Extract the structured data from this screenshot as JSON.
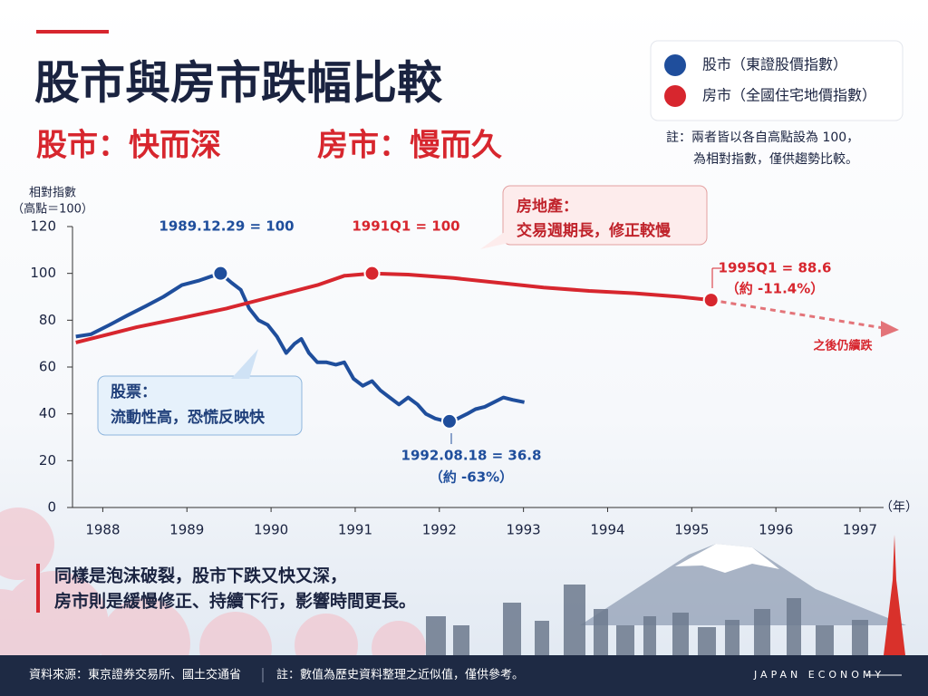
{
  "chart_data": {
    "type": "line",
    "title": "股市與房市跌幅比較",
    "subtitle": [
      "股市：快而深",
      "房市：慢而久"
    ],
    "note": [
      "註：兩者皆以各自高點設為 100，",
      "為相對指數，僅供趨勢比較。"
    ],
    "ylabel": [
      "相對指數",
      "（高點＝100）"
    ],
    "xlabel": "（年）",
    "xlim": [
      1987.64,
      1997.28
    ],
    "xticks": [
      1988,
      1989,
      1990,
      1991,
      1992,
      1993,
      1994,
      1995,
      1996,
      1997
    ],
    "ylim": [
      0,
      120
    ],
    "yticks": [
      0,
      20,
      40,
      60,
      80,
      100,
      120
    ],
    "series": [
      {
        "name": "股市（東證股價指數）",
        "color": "#1f4e9c",
        "markers": [
          9,
          35
        ],
        "x": [
          1987.68,
          1987.86,
          1988.08,
          1988.29,
          1988.51,
          1988.72,
          1988.94,
          1989.15,
          1989.31,
          1989.4,
          1989.53,
          1989.64,
          1989.74,
          1989.85,
          1989.96,
          1990.07,
          1990.18,
          1990.28,
          1990.36,
          1990.45,
          1990.55,
          1990.66,
          1990.77,
          1990.87,
          1990.98,
          1991.09,
          1991.2,
          1991.3,
          1991.41,
          1991.52,
          1991.63,
          1991.74,
          1991.84,
          1991.95,
          1992.06,
          1992.12,
          1992.22,
          1992.33,
          1992.43,
          1992.54,
          1992.65,
          1992.76,
          1992.87,
          1993.01
        ],
        "values": [
          73,
          74,
          78,
          82,
          86,
          90,
          95,
          97,
          99,
          100,
          96,
          93,
          85,
          80,
          78,
          73,
          66,
          70,
          72,
          66,
          62,
          62,
          61,
          62,
          55,
          52,
          54,
          50,
          47,
          44,
          47,
          44,
          40,
          38,
          37,
          36.8,
          38,
          40,
          42,
          43,
          45,
          47,
          46,
          45
        ]
      },
      {
        "name": "房市（全國住宅地價指數）",
        "color": "#d7262e",
        "markers": [
          7,
          15
        ],
        "x": [
          1987.68,
          1988.4,
          1988.94,
          1989.47,
          1990.01,
          1990.55,
          1990.87,
          1991.2,
          1991.63,
          1992.17,
          1992.7,
          1993.24,
          1993.78,
          1994.32,
          1994.86,
          1995.23
        ],
        "values": [
          70.5,
          77,
          81,
          85,
          90,
          95,
          99,
          100,
          99.5,
          98,
          96,
          94,
          92.5,
          91.5,
          90,
          88.6
        ]
      }
    ],
    "annotations": [
      "1989.12.29 = 100",
      "1991Q1 = 100",
      "1992.08.18 = 36.8",
      "（約 -63%）",
      "1995Q1 = 88.6",
      "（約 -11.4%）",
      "之後仍續跌"
    ],
    "callouts": [
      {
        "title": "房地產：",
        "text": "交易週期長，修正較慢"
      },
      {
        "title": "股票：",
        "text": "流動性高，恐慌反映快"
      }
    ],
    "summary": [
      "同樣是泡沫破裂，股市下跌又快又深，",
      "房市則是緩慢修正、持續下行，影響時間更長。"
    ],
    "footer": {
      "source": "資料來源：東京證券交易所、國土交通省",
      "note": "註：數值為歷史資料整理之近似值，僅供參考。",
      "brand": "JAPAN ECONOMY"
    }
  }
}
